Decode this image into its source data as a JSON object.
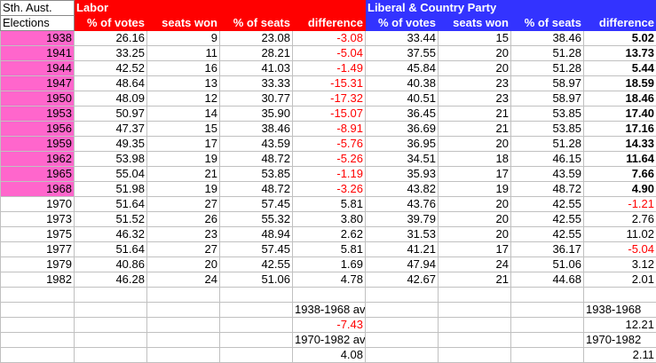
{
  "header": {
    "title_line1": "Sth. Aust.",
    "title_line2": "Elections",
    "labor": "Labor",
    "lcp": "Liberal & Country Party",
    "columns": [
      "% of votes",
      "seats won",
      "% of seats",
      "difference",
      "% of votes",
      "seats won",
      "% of seats",
      "difference"
    ]
  },
  "colors": {
    "labor": "#ff0000",
    "lcp": "#3333ff",
    "highlight": "#ff66cc",
    "negative": "#ff0000"
  },
  "rows": [
    {
      "year": "1938",
      "highlight": true,
      "values": [
        "26.16",
        "9",
        "23.08",
        "-3.08",
        "33.44",
        "15",
        "38.46",
        "5.02"
      ]
    },
    {
      "year": "1941",
      "highlight": true,
      "values": [
        "33.25",
        "11",
        "28.21",
        "-5.04",
        "37.55",
        "20",
        "51.28",
        "13.73"
      ]
    },
    {
      "year": "1944",
      "highlight": true,
      "values": [
        "42.52",
        "16",
        "41.03",
        "-1.49",
        "45.84",
        "20",
        "51.28",
        "5.44"
      ]
    },
    {
      "year": "1947",
      "highlight": true,
      "values": [
        "48.64",
        "13",
        "33.33",
        "-15.31",
        "40.38",
        "23",
        "58.97",
        "18.59"
      ]
    },
    {
      "year": "1950",
      "highlight": true,
      "values": [
        "48.09",
        "12",
        "30.77",
        "-17.32",
        "40.51",
        "23",
        "58.97",
        "18.46"
      ]
    },
    {
      "year": "1953",
      "highlight": true,
      "values": [
        "50.97",
        "14",
        "35.90",
        "-15.07",
        "36.45",
        "21",
        "53.85",
        "17.40"
      ]
    },
    {
      "year": "1956",
      "highlight": true,
      "values": [
        "47.37",
        "15",
        "38.46",
        "-8.91",
        "36.69",
        "21",
        "53.85",
        "17.16"
      ]
    },
    {
      "year": "1959",
      "highlight": true,
      "values": [
        "49.35",
        "17",
        "43.59",
        "-5.76",
        "36.95",
        "20",
        "51.28",
        "14.33"
      ]
    },
    {
      "year": "1962",
      "highlight": true,
      "values": [
        "53.98",
        "19",
        "48.72",
        "-5.26",
        "34.51",
        "18",
        "46.15",
        "11.64"
      ]
    },
    {
      "year": "1965",
      "highlight": true,
      "values": [
        "55.04",
        "21",
        "53.85",
        "-1.19",
        "35.93",
        "17",
        "43.59",
        "7.66"
      ]
    },
    {
      "year": "1968",
      "highlight": true,
      "values": [
        "51.98",
        "19",
        "48.72",
        "-3.26",
        "43.82",
        "19",
        "48.72",
        "4.90"
      ]
    },
    {
      "year": "1970",
      "highlight": false,
      "values": [
        "51.64",
        "27",
        "57.45",
        "5.81",
        "43.76",
        "20",
        "42.55",
        "-1.21"
      ]
    },
    {
      "year": "1973",
      "highlight": false,
      "values": [
        "51.52",
        "26",
        "55.32",
        "3.80",
        "39.79",
        "20",
        "42.55",
        "2.76"
      ]
    },
    {
      "year": "1975",
      "highlight": false,
      "values": [
        "46.32",
        "23",
        "48.94",
        "2.62",
        "31.53",
        "20",
        "42.55",
        "11.02"
      ]
    },
    {
      "year": "1977",
      "highlight": false,
      "values": [
        "51.64",
        "27",
        "57.45",
        "5.81",
        "41.21",
        "17",
        "36.17",
        "-5.04"
      ]
    },
    {
      "year": "1979",
      "highlight": false,
      "values": [
        "40.86",
        "20",
        "42.55",
        "1.69",
        "47.94",
        "24",
        "51.06",
        "3.12"
      ]
    },
    {
      "year": "1982",
      "highlight": false,
      "values": [
        "46.28",
        "24",
        "51.06",
        "4.78",
        "42.67",
        "21",
        "44.68",
        "2.01"
      ]
    }
  ],
  "summary": {
    "labor_label_1": "1938-1968 av.",
    "labor_value_1": "-7.43",
    "labor_label_2": "1970-1982 av.",
    "labor_value_2": "4.08",
    "lcp_label_1": "1938-1968",
    "lcp_value_1": "12.21",
    "lcp_label_2": "1970-1982",
    "lcp_value_2": "2.11"
  }
}
